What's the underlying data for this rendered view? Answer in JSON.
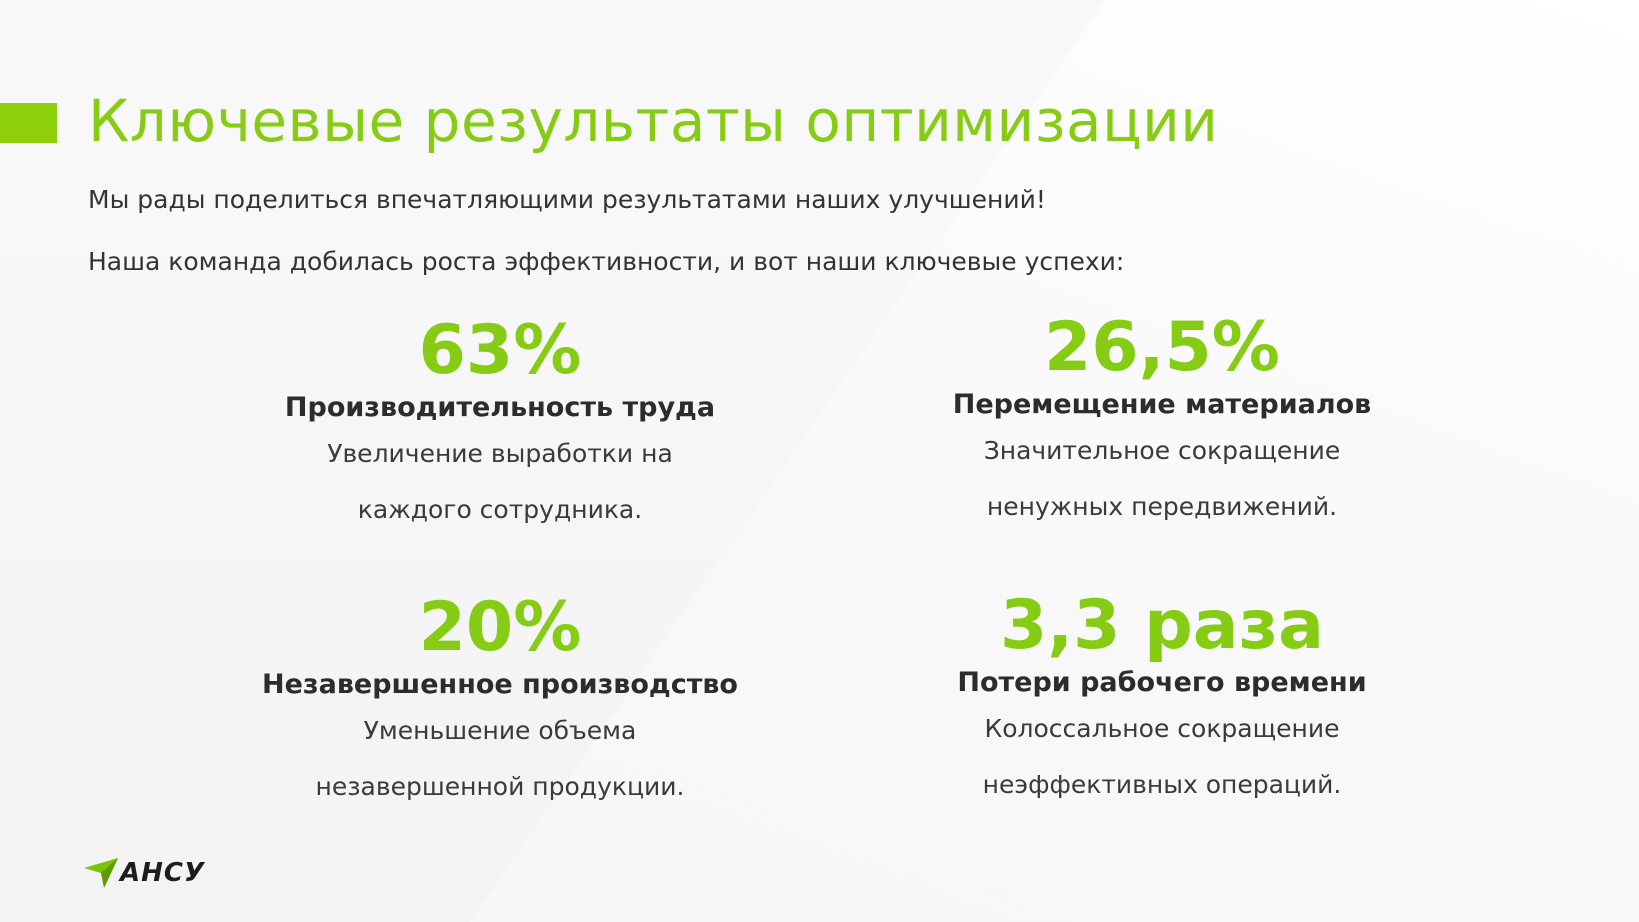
{
  "slide": {
    "title": "Ключевые результаты оптимизации",
    "intro_line_1": "Мы рады поделиться впечатляющими результатами наших улучшений!",
    "intro_line_2": "Наша команда добилась роста эффективности, и вот наши ключевые успехи:",
    "accent_color": "#86cc14"
  },
  "metrics": [
    {
      "value": "63%",
      "label": "Производительность труда",
      "desc_line_1": "Увеличение выработки на",
      "desc_line_2": "каждого сотрудника."
    },
    {
      "value": "26,5%",
      "label": "Перемещение материалов",
      "desc_line_1": "Значительное сокращение",
      "desc_line_2": "ненужных передвижений."
    },
    {
      "value": "20%",
      "label": "Незавершенное производство",
      "desc_line_1": "Уменьшение объема",
      "desc_line_2": "незавершенной продукции."
    },
    {
      "value": "3,3 раза",
      "label": "Потери рабочего времени",
      "desc_line_1": "Колоссальное сокращение",
      "desc_line_2": "неэффективных операций."
    }
  ],
  "logo": {
    "text": "АНСУ",
    "icon": "arrow-logo-icon",
    "icon_color": "#7bc400"
  }
}
